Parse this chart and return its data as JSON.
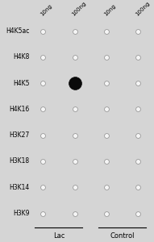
{
  "rows": [
    "H4K5ac",
    "H4K8",
    "H4K5",
    "H4K16",
    "H3K27",
    "H3K18",
    "H3K14",
    "H3K9"
  ],
  "col_labels": [
    "10ng",
    "100ng",
    "10ng",
    "100ng"
  ],
  "group_labels": [
    "Lac",
    "Control"
  ],
  "background_color": "#d5d5d5",
  "dot_empty_facecolor": "#f5f5f5",
  "dot_empty_edgecolor": "#999999",
  "dot_filled_facecolor": "#0a0a0a",
  "dot_filled_edgecolor": "#0a0a0a",
  "filled_row": 2,
  "filled_col": 1,
  "dot_size_empty": 18,
  "dot_size_filled": 130,
  "dot_lw_empty": 0.6,
  "dot_lw_filled": 0.5,
  "row_label_fontsize": 5.5,
  "col_label_fontsize": 5.0,
  "group_label_fontsize": 6.0,
  "figsize": [
    1.91,
    3.0
  ],
  "dpi": 100
}
